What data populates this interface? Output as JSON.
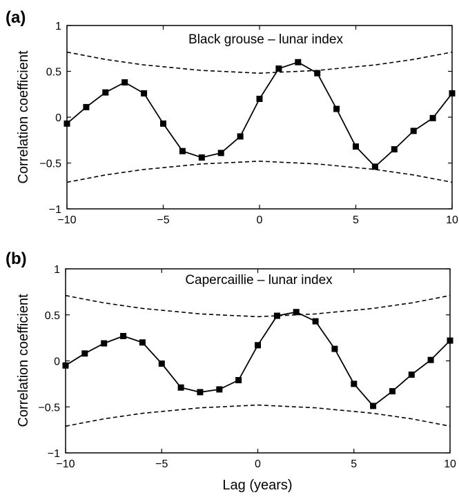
{
  "chart_data": [
    {
      "type": "line",
      "panel_label": "(a)",
      "title": "Black grouse – lunar index",
      "xlabel": "",
      "ylabel": "Correlation coefficient",
      "xlim": [
        -10,
        10
      ],
      "ylim": [
        -1,
        1
      ],
      "xticks": [
        -10,
        -5,
        0,
        5,
        10
      ],
      "xtick_labels": [
        "−10",
        "−5",
        "0",
        "5",
        "10"
      ],
      "yticks": [
        -1,
        -0.5,
        0,
        0.5,
        1
      ],
      "ytick_labels": [
        "−1",
        "−0.5",
        "0",
        "0.5",
        "1"
      ],
      "grid": false,
      "x": [
        -10,
        -9,
        -8,
        -7,
        -6,
        -5,
        -4,
        -3,
        -2,
        -1,
        0,
        1,
        2,
        3,
        4,
        5,
        6,
        7,
        8,
        9,
        10
      ],
      "series": [
        {
          "values": [
            -0.07,
            0.11,
            0.27,
            0.38,
            0.26,
            -0.07,
            -0.37,
            -0.44,
            -0.39,
            -0.21,
            0.2,
            0.53,
            0.6,
            0.48,
            0.09,
            -0.32,
            -0.54,
            -0.35,
            -0.15,
            -0.01,
            0.26
          ],
          "style": "solid-markers",
          "color": "#000000"
        },
        {
          "values": [
            0.71,
            0.67,
            0.63,
            0.6,
            0.57,
            0.55,
            0.53,
            0.51,
            0.5,
            0.49,
            0.48,
            0.49,
            0.5,
            0.51,
            0.53,
            0.55,
            0.57,
            0.6,
            0.63,
            0.67,
            0.71
          ],
          "style": "dashed",
          "color": "#000000"
        },
        {
          "values": [
            -0.71,
            -0.67,
            -0.63,
            -0.6,
            -0.57,
            -0.55,
            -0.53,
            -0.51,
            -0.5,
            -0.49,
            -0.48,
            -0.49,
            -0.5,
            -0.51,
            -0.53,
            -0.55,
            -0.57,
            -0.6,
            -0.63,
            -0.67,
            -0.71
          ],
          "style": "dashed",
          "color": "#000000"
        }
      ]
    },
    {
      "type": "line",
      "panel_label": "(b)",
      "title": "Capercaillie – lunar index",
      "xlabel": "Lag (years)",
      "ylabel": "Correlation coefficient",
      "xlim": [
        -10,
        10
      ],
      "ylim": [
        -1,
        1
      ],
      "xticks": [
        -10,
        -5,
        0,
        5,
        10
      ],
      "xtick_labels": [
        "−10",
        "−5",
        "0",
        "5",
        "10"
      ],
      "yticks": [
        -1,
        -0.5,
        0,
        0.5,
        1
      ],
      "ytick_labels": [
        "−1",
        "−0.5",
        "0",
        "0.5",
        "1"
      ],
      "grid": false,
      "x": [
        -10,
        -9,
        -8,
        -7,
        -6,
        -5,
        -4,
        -3,
        -2,
        -1,
        0,
        1,
        2,
        3,
        4,
        5,
        6,
        7,
        8,
        9,
        10
      ],
      "series": [
        {
          "values": [
            -0.05,
            0.08,
            0.19,
            0.27,
            0.2,
            -0.03,
            -0.29,
            -0.34,
            -0.31,
            -0.21,
            0.17,
            0.49,
            0.53,
            0.43,
            0.13,
            -0.25,
            -0.49,
            -0.33,
            -0.15,
            0.01,
            0.22
          ],
          "style": "solid-markers",
          "color": "#000000"
        },
        {
          "values": [
            0.71,
            0.67,
            0.63,
            0.6,
            0.57,
            0.55,
            0.53,
            0.51,
            0.5,
            0.49,
            0.48,
            0.49,
            0.5,
            0.51,
            0.53,
            0.55,
            0.57,
            0.6,
            0.63,
            0.67,
            0.71
          ],
          "style": "dashed",
          "color": "#000000"
        },
        {
          "values": [
            -0.71,
            -0.67,
            -0.63,
            -0.6,
            -0.57,
            -0.55,
            -0.53,
            -0.51,
            -0.5,
            -0.49,
            -0.48,
            -0.49,
            -0.5,
            -0.51,
            -0.53,
            -0.55,
            -0.57,
            -0.6,
            -0.63,
            -0.67,
            -0.71
          ],
          "style": "dashed",
          "color": "#000000"
        }
      ]
    }
  ]
}
